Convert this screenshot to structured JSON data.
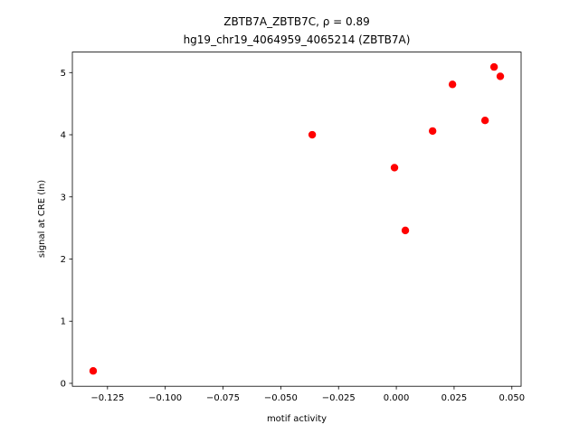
{
  "chart_data": {
    "type": "scatter",
    "title": "ZBTB7A_ZBTB7C, ρ = 0.89",
    "subtitle": "hg19_chr19_4064959_4065214 (ZBTB7A)",
    "x_label": "motif activity",
    "y_label": "signal at CRE (ln)",
    "color": "#ff0000",
    "x": [
      -0.1312,
      -0.0364,
      -0.0008,
      0.0039,
      0.0157,
      0.0243,
      0.0384,
      0.0423,
      0.045
    ],
    "values": [
      0.2,
      4.0,
      3.47,
      2.46,
      4.06,
      4.81,
      4.23,
      5.09,
      4.94
    ],
    "xlim": [
      -0.1402,
      0.054
    ],
    "ylim": [
      -0.047,
      5.33
    ],
    "xticks": [
      {
        "value": -0.125,
        "label": "−0.125"
      },
      {
        "value": -0.1,
        "label": "−0.100"
      },
      {
        "value": -0.075,
        "label": "−0.075"
      },
      {
        "value": -0.05,
        "label": "−0.050"
      },
      {
        "value": -0.025,
        "label": "−0.025"
      },
      {
        "value": 0,
        "label": "0.000"
      },
      0.025,
      {
        "value": 0.05,
        "label": "0.050"
      }
    ],
    "yticks": [
      0,
      1,
      2,
      3,
      4,
      5
    ]
  }
}
